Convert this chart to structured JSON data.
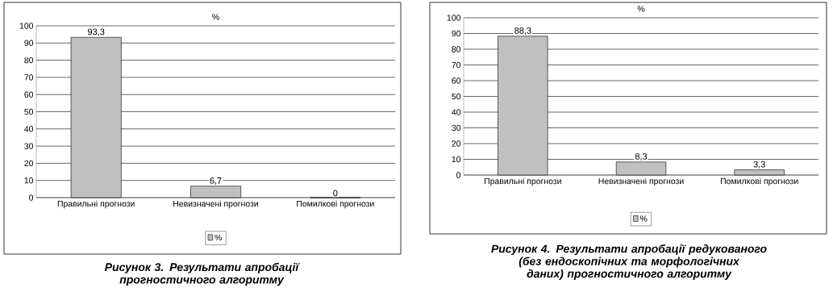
{
  "chart_data": [
    {
      "type": "bar",
      "title": "%",
      "categories": [
        "Правильні прогнози",
        "Невизначені прогнози",
        "Помилкові прогнози"
      ],
      "series": [
        {
          "name": "%",
          "color": "#c0c0c0",
          "values": [
            93.3,
            6.7,
            0
          ],
          "value_labels": [
            "93,3",
            "6,7",
            "0"
          ]
        }
      ],
      "ylim": [
        0,
        100
      ],
      "yticks": [
        0,
        10,
        20,
        30,
        40,
        50,
        60,
        70,
        80,
        90,
        100
      ],
      "grid": "y",
      "legend": "bottom",
      "annotations": [
        "**Рисунок 3. Результати апробації прогностичного алгоритму**"
      ]
    },
    {
      "type": "bar",
      "title": "%",
      "categories": [
        "Правильні прогнози",
        "Невизначені прогнози",
        "Помилкові прогнози"
      ],
      "series": [
        {
          "name": "%",
          "color": "#c0c0c0",
          "values": [
            88.3,
            8.3,
            3.3
          ],
          "value_labels": [
            "88,3",
            "8,3",
            "3,3"
          ]
        }
      ],
      "ylim": [
        0,
        100
      ],
      "yticks": [
        0,
        10,
        20,
        30,
        40,
        50,
        60,
        70,
        80,
        90,
        100
      ],
      "grid": "y",
      "legend": "bottom",
      "annotations": [
        "**Рисунок 4. Результати апробації редукованого (без ендоскопічних та морфологічних даних) прогностичного алгоритму**"
      ]
    }
  ]
}
